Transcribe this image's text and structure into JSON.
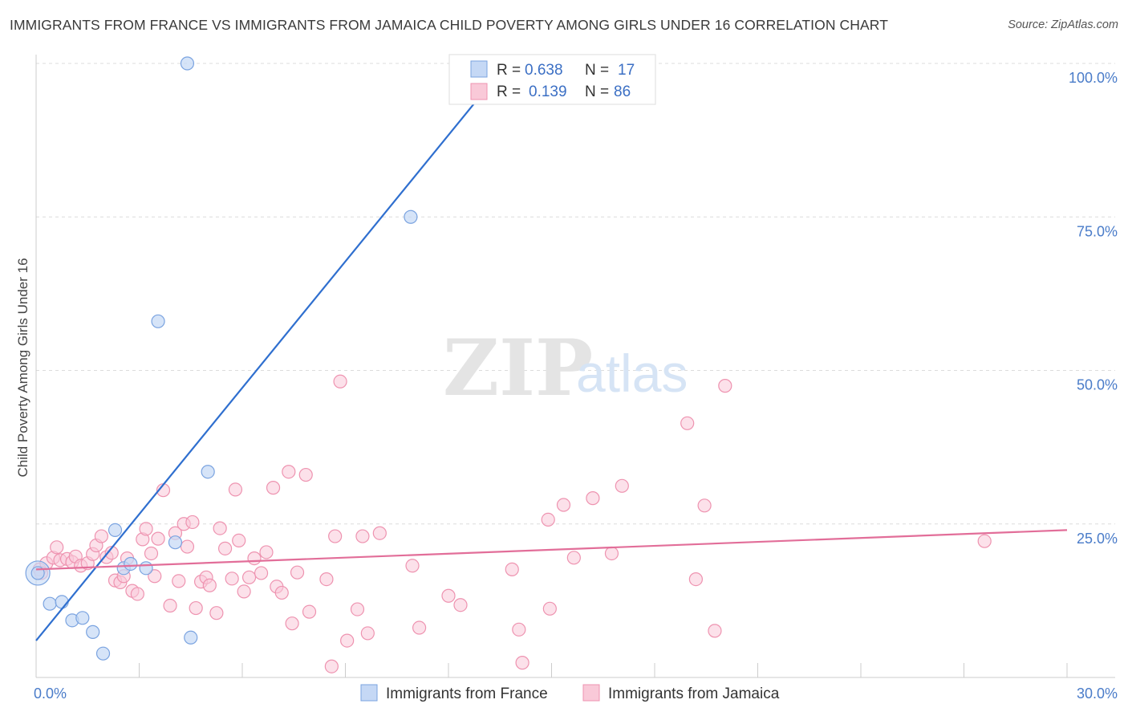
{
  "header": {
    "title": "IMMIGRANTS FROM FRANCE VS IMMIGRANTS FROM JAMAICA CHILD POVERTY AMONG GIRLS UNDER 16 CORRELATION CHART",
    "source": "Source: ZipAtlas.com"
  },
  "watermark": {
    "zip": "ZIP",
    "atlas": "atlas"
  },
  "legend": {
    "france": {
      "r_label": "R =",
      "r_value": "0.638",
      "n_label": "N =",
      "n_value": "17"
    },
    "jamaica": {
      "r_label": "R =",
      "r_value": "0.139",
      "n_label": "N =",
      "n_value": "86"
    }
  },
  "colors": {
    "france_fill": "#c5d8f5",
    "france_stroke": "#7aa3e0",
    "france_line": "#2f6fcf",
    "jamaica_fill": "#f9c9d8",
    "jamaica_stroke": "#ee93b0",
    "jamaica_line": "#e26e99",
    "tick_text": "#4a7cc9"
  },
  "chart_data": {
    "type": "scatter",
    "title": "IMMIGRANTS FROM FRANCE VS IMMIGRANTS FROM JAMAICA CHILD POVERTY AMONG GIRLS UNDER 16 CORRELATION CHART",
    "xlabel": "",
    "ylabel": "Child Poverty Among Girls Under 16",
    "xlim": [
      0,
      30
    ],
    "ylim": [
      0,
      100
    ],
    "x_tick_labels": [
      "0.0%",
      "30.0%"
    ],
    "y_ticks": [
      25,
      50,
      75,
      100
    ],
    "y_tick_labels": [
      "25.0%",
      "50.0%",
      "75.0%",
      "100.0%"
    ],
    "grid": true,
    "series": [
      {
        "name": "Immigrants from France",
        "r": 0.638,
        "n": 17,
        "trend": {
          "x": [
            0,
            13.7
          ],
          "y": [
            6.0,
            100
          ]
        },
        "points": [
          [
            0.05,
            17.0
          ],
          [
            0.4,
            12.0
          ],
          [
            0.75,
            12.3
          ],
          [
            1.05,
            9.3
          ],
          [
            1.35,
            9.7
          ],
          [
            1.65,
            7.4
          ],
          [
            1.95,
            3.9
          ],
          [
            2.3,
            24.0
          ],
          [
            2.55,
            17.8
          ],
          [
            2.75,
            18.5
          ],
          [
            3.2,
            17.8
          ],
          [
            3.55,
            58.0
          ],
          [
            4.05,
            22.0
          ],
          [
            4.4,
            100.0
          ],
          [
            4.5,
            6.5
          ],
          [
            5.0,
            33.5
          ],
          [
            10.9,
            75.0
          ]
        ],
        "big_points": [
          [
            0.05,
            17.0
          ]
        ]
      },
      {
        "name": "Immigrants from Jamaica",
        "r": 0.139,
        "n": 86,
        "trend": {
          "x": [
            0,
            30
          ],
          "y": [
            17.6,
            24.0
          ]
        },
        "points": [
          [
            0.1,
            17.6
          ],
          [
            0.3,
            18.6
          ],
          [
            0.5,
            19.5
          ],
          [
            0.6,
            21.2
          ],
          [
            0.7,
            19.1
          ],
          [
            0.9,
            19.3
          ],
          [
            1.05,
            18.8
          ],
          [
            1.15,
            19.7
          ],
          [
            1.3,
            18.2
          ],
          [
            1.5,
            18.6
          ],
          [
            1.65,
            20.1
          ],
          [
            1.75,
            21.5
          ],
          [
            1.9,
            23.0
          ],
          [
            2.05,
            19.6
          ],
          [
            2.2,
            20.3
          ],
          [
            2.3,
            15.8
          ],
          [
            2.45,
            15.5
          ],
          [
            2.55,
            16.5
          ],
          [
            2.65,
            19.4
          ],
          [
            2.8,
            14.1
          ],
          [
            2.95,
            13.6
          ],
          [
            3.1,
            22.5
          ],
          [
            3.2,
            24.2
          ],
          [
            3.35,
            20.2
          ],
          [
            3.45,
            16.5
          ],
          [
            3.55,
            22.6
          ],
          [
            3.7,
            30.5
          ],
          [
            3.9,
            11.7
          ],
          [
            4.05,
            23.5
          ],
          [
            4.15,
            15.7
          ],
          [
            4.3,
            25.0
          ],
          [
            4.4,
            21.3
          ],
          [
            4.55,
            25.3
          ],
          [
            4.65,
            11.3
          ],
          [
            4.8,
            15.6
          ],
          [
            4.95,
            16.3
          ],
          [
            5.05,
            15.0
          ],
          [
            5.25,
            10.5
          ],
          [
            5.35,
            24.3
          ],
          [
            5.5,
            21.0
          ],
          [
            5.7,
            16.1
          ],
          [
            5.8,
            30.6
          ],
          [
            5.9,
            22.3
          ],
          [
            6.05,
            14.0
          ],
          [
            6.2,
            16.3
          ],
          [
            6.35,
            19.4
          ],
          [
            6.55,
            17.0
          ],
          [
            6.7,
            20.4
          ],
          [
            6.9,
            30.9
          ],
          [
            7.0,
            14.8
          ],
          [
            7.15,
            13.8
          ],
          [
            7.35,
            33.5
          ],
          [
            7.45,
            8.8
          ],
          [
            7.6,
            17.1
          ],
          [
            7.85,
            33.0
          ],
          [
            7.95,
            10.7
          ],
          [
            8.45,
            16.0
          ],
          [
            8.6,
            1.8
          ],
          [
            8.7,
            23.0
          ],
          [
            8.85,
            48.2
          ],
          [
            9.05,
            6.0
          ],
          [
            9.35,
            11.1
          ],
          [
            9.5,
            23.0
          ],
          [
            9.65,
            7.2
          ],
          [
            10.0,
            23.5
          ],
          [
            10.95,
            18.2
          ],
          [
            11.15,
            8.1
          ],
          [
            12.0,
            13.3
          ],
          [
            12.35,
            11.8
          ],
          [
            13.85,
            17.6
          ],
          [
            14.05,
            7.8
          ],
          [
            14.15,
            2.4
          ],
          [
            14.9,
            25.7
          ],
          [
            14.95,
            11.2
          ],
          [
            15.35,
            28.1
          ],
          [
            15.65,
            19.5
          ],
          [
            16.2,
            29.2
          ],
          [
            16.75,
            20.2
          ],
          [
            17.05,
            31.2
          ],
          [
            18.95,
            41.4
          ],
          [
            19.2,
            16.0
          ],
          [
            19.45,
            28.0
          ],
          [
            19.75,
            7.6
          ],
          [
            20.05,
            47.5
          ],
          [
            27.6,
            22.2
          ],
          [
            0.15,
            17.0
          ]
        ]
      }
    ]
  },
  "bottom_legend": [
    {
      "label": "Immigrants from France"
    },
    {
      "label": "Immigrants from Jamaica"
    }
  ]
}
